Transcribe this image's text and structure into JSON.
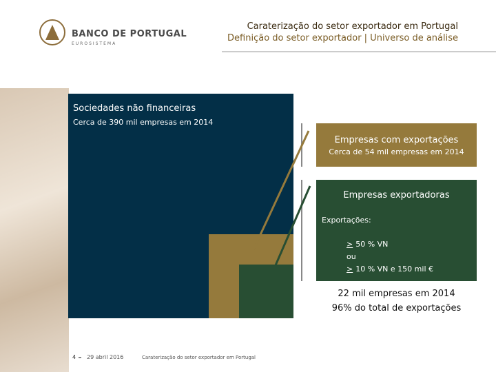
{
  "header": {
    "title": "Caraterização do setor exportador em Portugal",
    "subtitle": "Definição do setor exportador | Universo de análise"
  },
  "logo": {
    "name": "BANCO DE PORTUGAL",
    "subname": "EUROSISTEMA"
  },
  "boxes": {
    "sociedades": {
      "title": "Sociedades não financeiras",
      "subtitle": "Cerca de 390 mil empresas em 2014"
    },
    "com_exportacoes": {
      "title": "Empresas com exportações",
      "subtitle": "Cerca de 54 mil empresas em 2014"
    },
    "exportadoras": {
      "title": "Empresas exportadoras",
      "criteria_label": "Exportações:",
      "criteria": [
        {
          "sign": ">",
          "text": "50 % VN"
        },
        {
          "text": "ou"
        },
        {
          "sign": ">",
          "text": "10 % VN e 150 mil €"
        }
      ],
      "summary": [
        "22 mil empresas em 2014",
        "96% do total de exportações"
      ]
    }
  },
  "footer": {
    "page": "4",
    "date": "29 abril 2016",
    "text": "Caraterização do setor exportador em Portugal"
  }
}
